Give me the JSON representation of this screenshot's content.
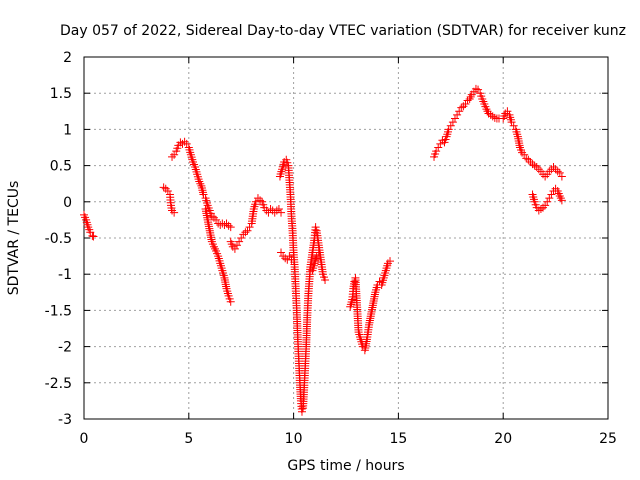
{
  "chart_data": {
    "type": "scatter",
    "title": "Day 057 of 2022, Sidereal Day-to-day VTEC variation (SDTVAR) for receiver kunz",
    "xlabel": "GPS time / hours",
    "ylabel": "SDTVAR / TECUs",
    "xlim": [
      0,
      25
    ],
    "ylim": [
      -3,
      2
    ],
    "xticks": [
      "0",
      "5",
      "10",
      "15",
      "20",
      "25"
    ],
    "yticks": [
      "2",
      "1.5",
      "1",
      "0.5",
      "0",
      "-0.5",
      "-1",
      "-1.5",
      "-2",
      "-2.5",
      "-3"
    ],
    "xtick_values": [
      0,
      5,
      10,
      15,
      20,
      25
    ],
    "ytick_values": [
      2,
      1.5,
      1,
      0.5,
      0,
      -0.5,
      -1,
      -1.5,
      -2,
      -2.5,
      -3
    ],
    "grid": true,
    "marker": "plus",
    "marker_color": "#ff0000",
    "series": [
      {
        "segments": [
          [
            [
              0.0,
              -0.18
            ],
            [
              0.1,
              -0.25
            ],
            [
              0.2,
              -0.35
            ],
            [
              0.3,
              -0.42
            ],
            [
              0.4,
              -0.47
            ],
            [
              0.45,
              -0.48
            ]
          ],
          [
            [
              3.8,
              0.2
            ],
            [
              3.9,
              0.18
            ],
            [
              4.0,
              0.15
            ],
            [
              4.1,
              0.1
            ],
            [
              4.15,
              -0.05
            ],
            [
              4.2,
              -0.12
            ],
            [
              4.3,
              -0.15
            ]
          ],
          [
            [
              4.2,
              0.62
            ],
            [
              4.3,
              0.65
            ],
            [
              4.4,
              0.7
            ],
            [
              4.5,
              0.78
            ],
            [
              4.6,
              0.82
            ],
            [
              4.7,
              0.8
            ],
            [
              4.8,
              0.83
            ],
            [
              4.9,
              0.8
            ],
            [
              5.0,
              0.75
            ],
            [
              5.1,
              0.65
            ],
            [
              5.2,
              0.55
            ],
            [
              5.3,
              0.48
            ],
            [
              5.4,
              0.38
            ],
            [
              5.5,
              0.28
            ],
            [
              5.6,
              0.22
            ],
            [
              5.7,
              0.1
            ],
            [
              5.8,
              0.05
            ],
            [
              5.9,
              -0.05
            ],
            [
              6.0,
              -0.12
            ],
            [
              6.1,
              -0.2
            ],
            [
              6.2,
              -0.22
            ],
            [
              6.3,
              -0.25
            ],
            [
              6.4,
              -0.3
            ],
            [
              6.5,
              -0.32
            ],
            [
              6.6,
              -0.3
            ],
            [
              6.7,
              -0.32
            ],
            [
              6.8,
              -0.3
            ],
            [
              6.9,
              -0.33
            ],
            [
              7.0,
              -0.35
            ]
          ],
          [
            [
              5.8,
              -0.1
            ],
            [
              5.9,
              -0.25
            ],
            [
              6.0,
              -0.4
            ],
            [
              6.1,
              -0.55
            ],
            [
              6.2,
              -0.62
            ],
            [
              6.3,
              -0.68
            ],
            [
              6.4,
              -0.75
            ],
            [
              6.5,
              -0.85
            ],
            [
              6.6,
              -0.95
            ],
            [
              6.7,
              -1.05
            ],
            [
              6.8,
              -1.2
            ],
            [
              6.9,
              -1.3
            ],
            [
              7.0,
              -1.38
            ]
          ],
          [
            [
              7.0,
              -0.55
            ],
            [
              7.1,
              -0.62
            ],
            [
              7.2,
              -0.65
            ],
            [
              7.3,
              -0.6
            ],
            [
              7.4,
              -0.55
            ],
            [
              7.5,
              -0.5
            ],
            [
              7.6,
              -0.45
            ],
            [
              7.7,
              -0.42
            ],
            [
              7.8,
              -0.4
            ],
            [
              7.9,
              -0.35
            ],
            [
              8.0,
              -0.3
            ],
            [
              8.1,
              -0.1
            ],
            [
              8.2,
              0.0
            ],
            [
              8.3,
              0.05
            ],
            [
              8.4,
              0.02
            ],
            [
              8.5,
              0.0
            ],
            [
              8.6,
              -0.08
            ],
            [
              8.7,
              -0.12
            ],
            [
              8.8,
              -0.15
            ],
            [
              8.9,
              -0.1
            ],
            [
              9.0,
              -0.12
            ],
            [
              9.1,
              -0.15
            ],
            [
              9.2,
              -0.12
            ],
            [
              9.3,
              -0.1
            ],
            [
              9.4,
              -0.15
            ]
          ],
          [
            [
              9.35,
              0.35
            ],
            [
              9.45,
              0.45
            ],
            [
              9.55,
              0.55
            ],
            [
              9.65,
              0.58
            ],
            [
              9.75,
              0.5
            ],
            [
              9.8,
              0.3
            ],
            [
              9.85,
              0.1
            ],
            [
              9.9,
              -0.2
            ],
            [
              9.95,
              -0.4
            ],
            [
              10.0,
              -0.7
            ],
            [
              10.05,
              -0.9
            ],
            [
              10.1,
              -1.2
            ],
            [
              10.15,
              -1.5
            ],
            [
              10.2,
              -1.9
            ],
            [
              10.25,
              -2.2
            ],
            [
              10.3,
              -2.5
            ],
            [
              10.35,
              -2.75
            ],
            [
              10.4,
              -2.9
            ],
            [
              10.45,
              -2.85
            ],
            [
              10.5,
              -2.6
            ],
            [
              10.55,
              -2.3
            ],
            [
              10.6,
              -2.0
            ],
            [
              10.65,
              -1.6
            ],
            [
              10.7,
              -1.3
            ],
            [
              10.75,
              -1.1
            ],
            [
              10.8,
              -0.9
            ],
            [
              10.9,
              -0.7
            ],
            [
              11.0,
              -0.5
            ],
            [
              11.05,
              -0.35
            ],
            [
              11.1,
              -0.4
            ],
            [
              11.2,
              -0.6
            ],
            [
              11.3,
              -0.8
            ],
            [
              11.4,
              -1.0
            ],
            [
              11.5,
              -1.08
            ]
          ],
          [
            [
              9.4,
              -0.7
            ],
            [
              9.5,
              -0.75
            ],
            [
              9.6,
              -0.78
            ],
            [
              9.7,
              -0.8
            ],
            [
              9.8,
              -0.75
            ],
            [
              9.9,
              -0.8
            ]
          ],
          [
            [
              10.9,
              -0.95
            ],
            [
              11.0,
              -0.85
            ],
            [
              11.1,
              -0.75
            ],
            [
              11.2,
              -0.7
            ]
          ],
          [
            [
              12.7,
              -1.45
            ],
            [
              12.8,
              -1.35
            ],
            [
              12.85,
              -1.2
            ],
            [
              12.9,
              -1.1
            ],
            [
              12.95,
              -1.05
            ],
            [
              13.0,
              -1.3
            ],
            [
              13.05,
              -1.55
            ],
            [
              13.1,
              -1.8
            ],
            [
              13.2,
              -1.9
            ],
            [
              13.3,
              -2.0
            ],
            [
              13.4,
              -2.05
            ],
            [
              13.5,
              -1.9
            ],
            [
              13.6,
              -1.7
            ],
            [
              13.7,
              -1.55
            ],
            [
              13.8,
              -1.4
            ],
            [
              13.9,
              -1.25
            ],
            [
              14.0,
              -1.15
            ],
            [
              14.1,
              -1.1
            ],
            [
              14.2,
              -1.15
            ],
            [
              14.3,
              -1.05
            ],
            [
              14.4,
              -0.95
            ],
            [
              14.5,
              -0.85
            ],
            [
              14.6,
              -0.82
            ]
          ],
          [
            [
              16.7,
              0.62
            ],
            [
              16.8,
              0.7
            ],
            [
              16.9,
              0.75
            ],
            [
              17.0,
              0.8
            ],
            [
              17.1,
              0.85
            ],
            [
              17.2,
              0.82
            ],
            [
              17.3,
              0.9
            ],
            [
              17.4,
              1.0
            ],
            [
              17.5,
              1.05
            ],
            [
              17.6,
              1.1
            ],
            [
              17.7,
              1.15
            ],
            [
              17.8,
              1.2
            ],
            [
              17.9,
              1.25
            ],
            [
              18.0,
              1.3
            ],
            [
              18.1,
              1.32
            ],
            [
              18.2,
              1.35
            ],
            [
              18.3,
              1.4
            ],
            [
              18.4,
              1.42
            ],
            [
              18.5,
              1.48
            ],
            [
              18.6,
              1.52
            ],
            [
              18.7,
              1.56
            ],
            [
              18.8,
              1.55
            ],
            [
              18.9,
              1.5
            ],
            [
              19.0,
              1.42
            ],
            [
              19.1,
              1.35
            ],
            [
              19.2,
              1.28
            ],
            [
              19.3,
              1.22
            ],
            [
              19.4,
              1.2
            ],
            [
              19.5,
              1.18
            ],
            [
              19.6,
              1.16
            ],
            [
              19.7,
              1.15
            ],
            [
              19.8,
              1.15
            ]
          ],
          [
            [
              20.0,
              1.15
            ],
            [
              20.1,
              1.22
            ],
            [
              20.2,
              1.25
            ],
            [
              20.3,
              1.2
            ],
            [
              20.4,
              1.1
            ],
            [
              20.5,
              1.05
            ],
            [
              20.6,
              1.0
            ],
            [
              20.7,
              0.9
            ],
            [
              20.8,
              0.75
            ],
            [
              20.9,
              0.68
            ],
            [
              21.0,
              0.65
            ],
            [
              21.1,
              0.6
            ],
            [
              21.2,
              0.58
            ],
            [
              21.3,
              0.55
            ],
            [
              21.4,
              0.52
            ],
            [
              21.5,
              0.5
            ],
            [
              21.6,
              0.48
            ],
            [
              21.7,
              0.45
            ],
            [
              21.8,
              0.42
            ],
            [
              21.9,
              0.38
            ],
            [
              22.0,
              0.35
            ],
            [
              22.1,
              0.38
            ],
            [
              22.2,
              0.42
            ],
            [
              22.3,
              0.45
            ],
            [
              22.4,
              0.48
            ],
            [
              22.5,
              0.45
            ],
            [
              22.6,
              0.42
            ],
            [
              22.7,
              0.4
            ],
            [
              22.8,
              0.35
            ]
          ],
          [
            [
              21.4,
              0.1
            ],
            [
              21.5,
              0.0
            ],
            [
              21.6,
              -0.08
            ],
            [
              21.7,
              -0.12
            ],
            [
              21.8,
              -0.1
            ],
            [
              21.9,
              -0.08
            ],
            [
              22.0,
              -0.05
            ],
            [
              22.1,
              0.0
            ],
            [
              22.2,
              0.05
            ],
            [
              22.3,
              0.1
            ],
            [
              22.4,
              0.15
            ],
            [
              22.5,
              0.18
            ],
            [
              22.6,
              0.15
            ],
            [
              22.7,
              0.08
            ],
            [
              22.8,
              0.02
            ]
          ]
        ]
      }
    ]
  }
}
